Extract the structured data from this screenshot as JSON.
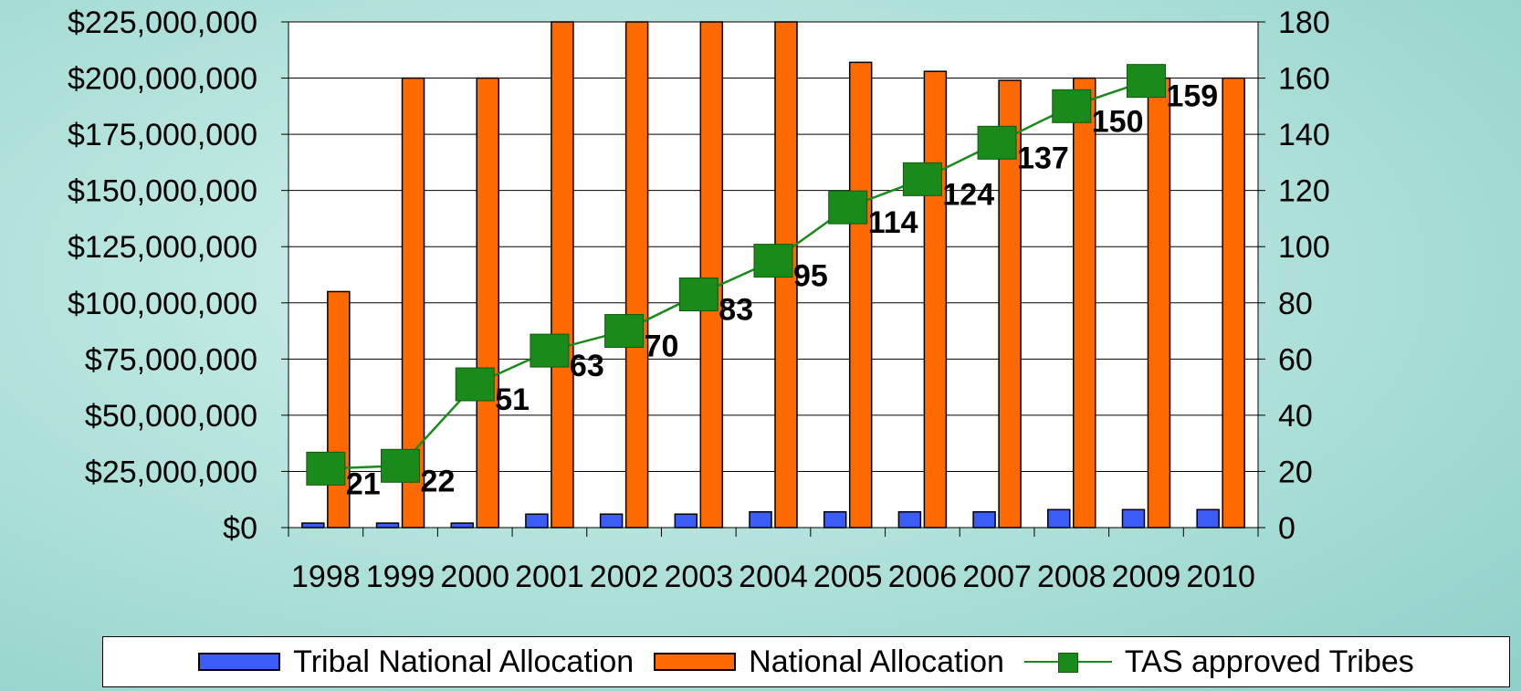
{
  "chart_data": {
    "type": "bar",
    "categories": [
      "1998",
      "1999",
      "2000",
      "2001",
      "2002",
      "2003",
      "2004",
      "2005",
      "2006",
      "2007",
      "2008",
      "2009",
      "2010"
    ],
    "series": [
      {
        "name": "Tribal National Allocation",
        "type": "bar",
        "axis": "left",
        "color": "#3b5cf5",
        "values": [
          2000000,
          2000000,
          2000000,
          6000000,
          6000000,
          6000000,
          7000000,
          7000000,
          7000000,
          7000000,
          8000000,
          8000000,
          8000000
        ]
      },
      {
        "name": "National Allocation",
        "type": "bar",
        "axis": "left",
        "color": "#ff6a00",
        "values": [
          105000000,
          200000000,
          200000000,
          225000000,
          225000000,
          225000000,
          225000000,
          207000000,
          203000000,
          199000000,
          200000000,
          200000000,
          200000000
        ]
      },
      {
        "name": "TAS approved Tribes",
        "type": "line",
        "axis": "right",
        "color": "#1a8a1a",
        "values": [
          21,
          22,
          51,
          63,
          70,
          83,
          95,
          114,
          124,
          137,
          150,
          159,
          null
        ],
        "data_labels": [
          "21",
          "22",
          "51",
          "63",
          "70",
          "83",
          "95",
          "114",
          "124",
          "137",
          "150",
          "159",
          ""
        ]
      }
    ],
    "y_left": {
      "ylim": [
        0,
        225000000
      ],
      "ticks": [
        "$0",
        "$25,000,000",
        "$50,000,000",
        "$75,000,000",
        "$100,000,000",
        "$125,000,000",
        "$150,000,000",
        "$175,000,000",
        "$200,000,000",
        "$225,000,000"
      ]
    },
    "y_right": {
      "ylim": [
        0,
        180
      ],
      "ticks": [
        "0",
        "20",
        "40",
        "60",
        "80",
        "100",
        "120",
        "140",
        "160",
        "180"
      ]
    },
    "grid": true,
    "legend_position": "bottom",
    "title": "",
    "xlabel": "",
    "ylabel": ""
  },
  "legend": {
    "tribal_label": "Tribal National Allocation",
    "national_label": "National Allocation",
    "tas_label": "TAS approved Tribes",
    "tribal_color": "#3b5cf5",
    "national_color": "#ff6a00",
    "tas_color": "#1a8a1a"
  }
}
